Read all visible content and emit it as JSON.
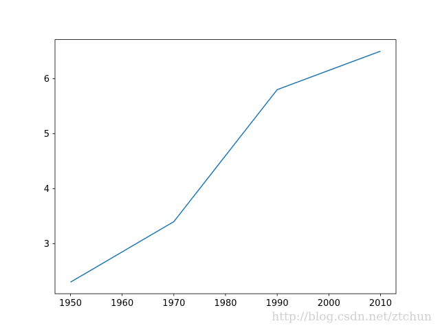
{
  "chart_data": {
    "type": "line",
    "x": [
      1950,
      1970,
      1990,
      2010
    ],
    "series": [
      {
        "color": "#1f77b4",
        "values": [
          2.3,
          3.4,
          5.8,
          6.5
        ]
      }
    ],
    "xlim": [
      1947,
      2013
    ],
    "xticks": [
      1950,
      1960,
      1970,
      1980,
      1990,
      2000,
      2010
    ],
    "ylim": [
      2.09,
      6.71
    ],
    "yticks": [
      3,
      4,
      5,
      6
    ]
  },
  "watermark": "http://blog.csdn.net/ztchun"
}
